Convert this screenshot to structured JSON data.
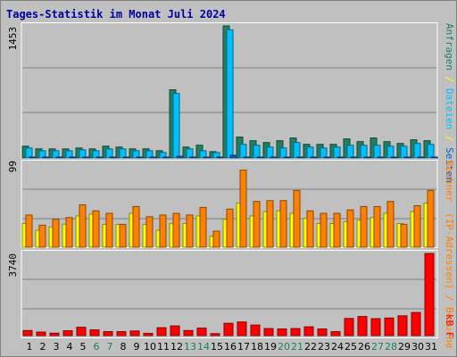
{
  "title": "Tages-Statistik im Monat Juli 2024",
  "colors": {
    "background": "#c0c0c0",
    "frame": "#ffffff",
    "title": "#0000a0",
    "gridline": "#808080",
    "weekday_label": "#000000",
    "weekend_label": "#208060",
    "anfragen": "#208060",
    "dateien": "#00c0ff",
    "seiten": "#0060d0",
    "rechner": "#ffff00",
    "besuche": "#ff8000",
    "kbf": "#ff0000"
  },
  "legends": {
    "top": [
      "Anfragen",
      "/",
      "Dateien",
      "/",
      "Seiten"
    ],
    "middle": [
      "Rechner",
      "(IP-Adressen)",
      "/",
      "Besuche"
    ],
    "bottom": [
      "kB F"
    ]
  },
  "chart_data": [
    {
      "type": "bar",
      "ymax_label": "1453",
      "ylim": [
        0,
        1453
      ],
      "categories": [
        "1",
        "2",
        "3",
        "4",
        "5",
        "6",
        "7",
        "8",
        "9",
        "10",
        "11",
        "12",
        "13",
        "14",
        "15",
        "16",
        "17",
        "18",
        "19",
        "20",
        "21",
        "22",
        "23",
        "24",
        "25",
        "26",
        "27",
        "28",
        "29",
        "30",
        "31"
      ],
      "weekend_days": [
        "6",
        "7",
        "13",
        "14",
        "20",
        "21",
        "27",
        "28"
      ],
      "series": [
        {
          "name": "Anfragen",
          "values": [
            130,
            100,
            100,
            100,
            110,
            100,
            130,
            120,
            100,
            100,
            80,
            750,
            120,
            140,
            70,
            1453,
            230,
            190,
            170,
            190,
            220,
            150,
            150,
            150,
            210,
            180,
            220,
            180,
            160,
            200,
            190
          ]
        },
        {
          "name": "Dateien",
          "values": [
            110,
            80,
            80,
            80,
            90,
            80,
            100,
            100,
            80,
            80,
            60,
            710,
            100,
            80,
            60,
            1410,
            150,
            140,
            120,
            110,
            170,
            120,
            110,
            120,
            140,
            140,
            140,
            130,
            130,
            160,
            150
          ]
        },
        {
          "name": "Seiten",
          "values": [
            10,
            8,
            8,
            8,
            8,
            8,
            10,
            8,
            8,
            8,
            6,
            20,
            8,
            8,
            6,
            30,
            10,
            10,
            10,
            8,
            10,
            8,
            8,
            8,
            10,
            10,
            10,
            8,
            8,
            10,
            10
          ]
        }
      ]
    },
    {
      "type": "bar",
      "ymax_label": "99",
      "ylim": [
        0,
        99
      ],
      "categories": [
        "1",
        "2",
        "3",
        "4",
        "5",
        "6",
        "7",
        "8",
        "9",
        "10",
        "11",
        "12",
        "13",
        "14",
        "15",
        "16",
        "17",
        "18",
        "19",
        "20",
        "21",
        "22",
        "23",
        "24",
        "25",
        "26",
        "27",
        "28",
        "29",
        "30",
        "31"
      ],
      "series": [
        {
          "name": "Rechner",
          "values": [
            28,
            20,
            24,
            27,
            37,
            39,
            27,
            27,
            40,
            27,
            20,
            28,
            28,
            37,
            13,
            33,
            52,
            37,
            42,
            43,
            40,
            34,
            28,
            28,
            30,
            32,
            35,
            40,
            28,
            42,
            52
          ]
        },
        {
          "name": "Besuche",
          "values": [
            38,
            26,
            33,
            35,
            50,
            43,
            40,
            27,
            48,
            36,
            38,
            40,
            38,
            47,
            19,
            45,
            91,
            54,
            55,
            55,
            67,
            43,
            40,
            40,
            44,
            48,
            48,
            54,
            27,
            49,
            67
          ]
        }
      ]
    },
    {
      "type": "bar",
      "ymax_label": "3740",
      "ylim": [
        0,
        3740
      ],
      "categories": [
        "1",
        "2",
        "3",
        "4",
        "5",
        "6",
        "7",
        "8",
        "9",
        "10",
        "11",
        "12",
        "13",
        "14",
        "15",
        "16",
        "17",
        "18",
        "19",
        "20",
        "21",
        "22",
        "23",
        "24",
        "25",
        "26",
        "27",
        "28",
        "29",
        "30",
        "31"
      ],
      "series": [
        {
          "name": "kB F",
          "values": [
            230,
            160,
            110,
            220,
            380,
            260,
            180,
            180,
            210,
            100,
            360,
            440,
            230,
            340,
            90,
            560,
            620,
            480,
            320,
            300,
            320,
            400,
            300,
            180,
            780,
            870,
            770,
            800,
            900,
            1050,
            3740
          ]
        }
      ]
    }
  ]
}
